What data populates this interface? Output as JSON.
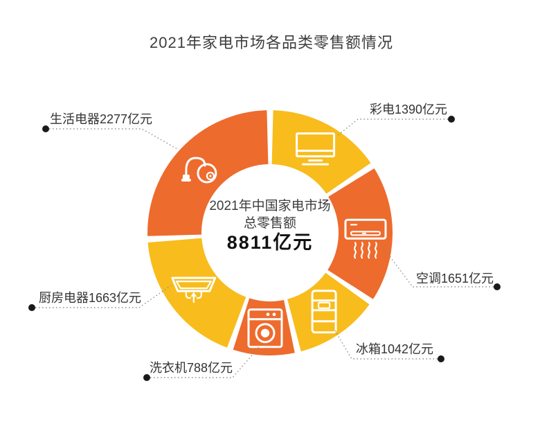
{
  "chart_data": {
    "type": "pie",
    "subtype": "donut",
    "title": "2021年家电市场各品类零售额情况",
    "unit": "亿元",
    "center": {
      "line1": "2021年中国家电市场",
      "line2": "总零售额",
      "total": "8811亿元",
      "total_value": 8811
    },
    "segments": [
      {
        "name": "彩电",
        "value": 1390,
        "label": "彩电1390亿元",
        "color": "#F8BC1D",
        "icon": "tv-icon"
      },
      {
        "name": "空调",
        "value": 1651,
        "label": "空调1651亿元",
        "color": "#ED6B2D",
        "icon": "air-conditioner-icon"
      },
      {
        "name": "冰箱",
        "value": 1042,
        "label": "冰箱1042亿元",
        "color": "#F8BC1D",
        "icon": "refrigerator-icon"
      },
      {
        "name": "洗衣机",
        "value": 788,
        "label": "洗衣机788亿元",
        "color": "#ED6B2D",
        "icon": "washing-machine-icon"
      },
      {
        "name": "厨房电器",
        "value": 1663,
        "label": "厨房电器1663亿元",
        "color": "#F8BC1D",
        "icon": "range-hood-icon"
      },
      {
        "name": "生活电器",
        "value": 2277,
        "label": "生活电器2277亿元",
        "color": "#ED6B2D",
        "icon": "vacuum-cleaner-icon"
      }
    ],
    "legend_position": "outside-callouts",
    "colors": {
      "orange": "#ED6B2D",
      "yellow": "#F8BC1D",
      "leader_line": "#8C8C8C",
      "callout_dot": "#1A1A1A",
      "title_text": "#3D3D3D",
      "label_text": "#333333",
      "background": "#FFFFFF"
    }
  }
}
